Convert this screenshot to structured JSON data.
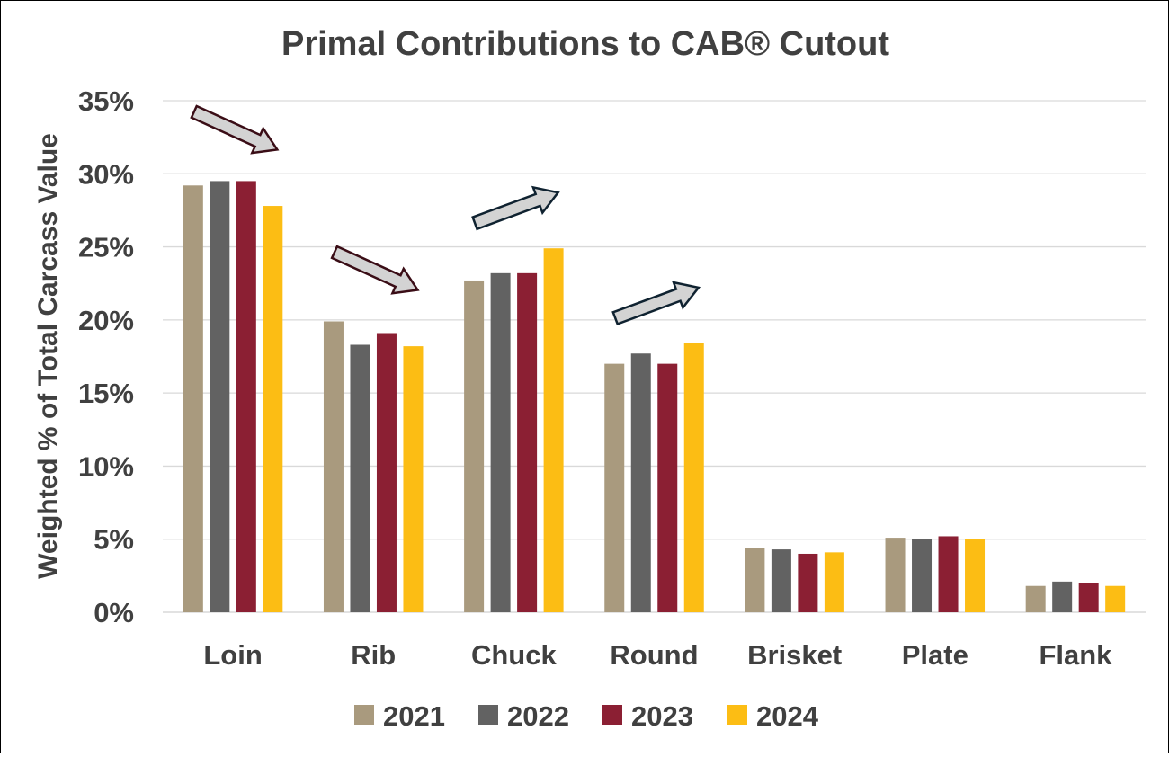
{
  "chart_data": {
    "type": "bar",
    "title": "Primal Contributions to CAB® Cutout",
    "ylabel": "Weighted % of Total Carcass Value",
    "xlabel": "",
    "categories": [
      "Loin",
      "Rib",
      "Chuck",
      "Round",
      "Brisket",
      "Plate",
      "Flank"
    ],
    "yticks": [
      "0%",
      "5%",
      "10%",
      "15%",
      "20%",
      "25%",
      "30%",
      "35%"
    ],
    "ylim": [
      0,
      35
    ],
    "grid": true,
    "legend_position": "bottom",
    "series": [
      {
        "name": "2021",
        "color": "#a99a7e",
        "values": [
          29.2,
          19.9,
          22.7,
          17.0,
          4.4,
          5.1,
          1.8
        ]
      },
      {
        "name": "2022",
        "color": "#626262",
        "values": [
          29.5,
          18.3,
          23.2,
          17.7,
          4.3,
          5.0,
          2.1
        ]
      },
      {
        "name": "2023",
        "color": "#8b1f33",
        "values": [
          29.5,
          19.1,
          23.2,
          17.0,
          4.0,
          5.2,
          2.0
        ]
      },
      {
        "name": "2024",
        "color": "#fcbd14",
        "values": [
          27.8,
          18.2,
          24.9,
          18.4,
          4.1,
          5.0,
          1.8
        ]
      }
    ],
    "annotations": [
      {
        "category": "Loin",
        "type": "arrow",
        "direction": "down"
      },
      {
        "category": "Rib",
        "type": "arrow",
        "direction": "down"
      },
      {
        "category": "Chuck",
        "type": "arrow",
        "direction": "up"
      },
      {
        "category": "Round",
        "type": "arrow",
        "direction": "up"
      }
    ]
  }
}
